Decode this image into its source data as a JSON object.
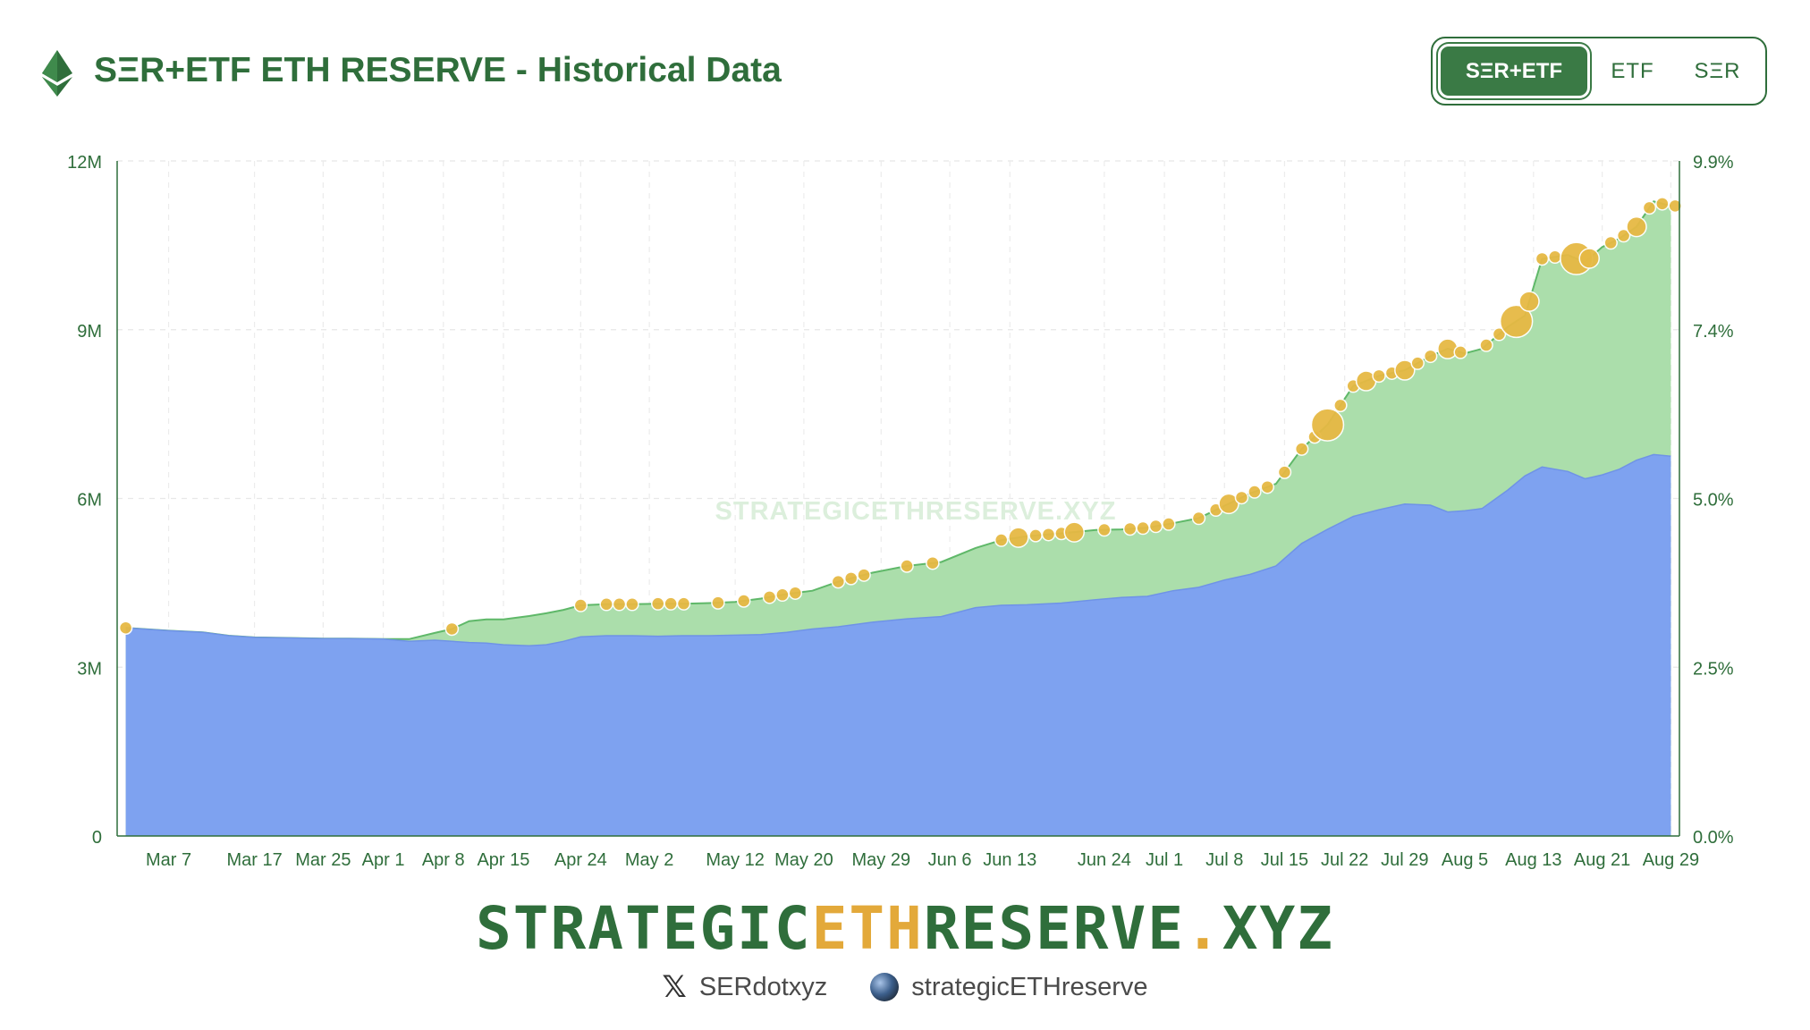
{
  "header": {
    "title": "SΞR+ETF ETH RESERVE - Historical Data",
    "toggle": [
      "SΞR+ETF",
      "ETF",
      "SΞR"
    ],
    "active_toggle": "SΞR+ETF"
  },
  "colors": {
    "brand_green": "#2f6e3b",
    "etf_area": "#7ea2f0",
    "ser_area": "#abdeab",
    "ser_line": "#5fb869",
    "bubble": "#e6b944",
    "bubble_stroke": "#ffffff",
    "accent_orange": "#e3a93a"
  },
  "watermark": "STRATEGICETHRESERVE.XYZ",
  "brand": {
    "prefix": "STRATEGIC",
    "accent": "ETH",
    "middle": "RESERVE",
    "dot": ".",
    "suffix": "XYZ"
  },
  "social": {
    "x_handle": "SERdotxyz",
    "site_handle": "strategicETHreserve",
    "x_icon": "x-logo-icon",
    "site_icon": "globe-icon"
  },
  "chart_data": {
    "type": "area",
    "stacked": true,
    "grid": true,
    "x_ticks": [
      "Mar 7",
      "Mar 17",
      "Mar 25",
      "Apr 1",
      "Apr 8",
      "Apr 15",
      "Apr 24",
      "May 2",
      "May 12",
      "May 20",
      "May 29",
      "Jun 6",
      "Jun 13",
      "Jun 24",
      "Jul 1",
      "Jul 8",
      "Jul 15",
      "Jul 22",
      "Jul 29",
      "Aug 5",
      "Aug 13",
      "Aug 21",
      "Aug 29"
    ],
    "x_tick_days": [
      6,
      16,
      24,
      31,
      38,
      45,
      54,
      62,
      72,
      80,
      89,
      97,
      104,
      115,
      122,
      129,
      136,
      143,
      150,
      157,
      165,
      173,
      181
    ],
    "y_left": {
      "ticks": [
        "0",
        "3M",
        "6M",
        "9M",
        "12M"
      ],
      "range": [
        0,
        12000000
      ]
    },
    "y_right": {
      "ticks": [
        "0.0%",
        "2.5%",
        "5.0%",
        "7.4%",
        "9.9%"
      ],
      "range": [
        0,
        9.9
      ]
    },
    "days": [
      1,
      3,
      6,
      10,
      13,
      16,
      20,
      24,
      27,
      31,
      34,
      37,
      39,
      41,
      43,
      45,
      48,
      50,
      52,
      54,
      57,
      60,
      63,
      66,
      69,
      72,
      75,
      78,
      81,
      84,
      88,
      92,
      96,
      100,
      103,
      106,
      110,
      114,
      117,
      120,
      123,
      126,
      129,
      132,
      135,
      138,
      141,
      144,
      147,
      150,
      153,
      155,
      157,
      159,
      162,
      164,
      166,
      169,
      171,
      173,
      175,
      177,
      179,
      181
    ],
    "series": [
      {
        "name": "ETF",
        "values": [
          3700000,
          3680000,
          3650000,
          3620000,
          3560000,
          3530000,
          3520000,
          3510000,
          3510000,
          3500000,
          3460000,
          3480000,
          3460000,
          3440000,
          3430000,
          3400000,
          3380000,
          3400000,
          3460000,
          3540000,
          3560000,
          3560000,
          3550000,
          3560000,
          3560000,
          3570000,
          3580000,
          3620000,
          3680000,
          3720000,
          3800000,
          3860000,
          3900000,
          4060000,
          4100000,
          4110000,
          4140000,
          4200000,
          4240000,
          4260000,
          4360000,
          4420000,
          4550000,
          4650000,
          4800000,
          5200000,
          5450000,
          5680000,
          5800000,
          5900000,
          5880000,
          5760000,
          5780000,
          5820000,
          6150000,
          6400000,
          6560000,
          6480000,
          6350000,
          6420000,
          6520000,
          6680000,
          6780000,
          6750000
        ]
      },
      {
        "name": "SER",
        "values": [
          0,
          0,
          0,
          0,
          0,
          0,
          0,
          0,
          0,
          0,
          40000,
          130000,
          220000,
          380000,
          420000,
          450000,
          530000,
          560000,
          560000,
          560000,
          560000,
          560000,
          580000,
          570000,
          580000,
          590000,
          640000,
          680000,
          680000,
          800000,
          880000,
          940000,
          970000,
          1060000,
          1160000,
          1220000,
          1240000,
          1240000,
          1210000,
          1220000,
          1200000,
          1230000,
          1320000,
          1440000,
          1460000,
          1680000,
          1860000,
          2320000,
          2380000,
          2380000,
          2650000,
          2900000,
          2800000,
          2840000,
          2900000,
          2850000,
          3700000,
          3850000,
          3850000,
          4050000,
          4100000,
          4150000,
          4500000,
          4450000
        ]
      }
    ],
    "purchases": [
      {
        "day": 1,
        "size": 1
      },
      {
        "day": 39,
        "size": 1
      },
      {
        "day": 54,
        "size": 1
      },
      {
        "day": 57,
        "size": 1
      },
      {
        "day": 58.5,
        "size": 1
      },
      {
        "day": 60,
        "size": 1
      },
      {
        "day": 63,
        "size": 1
      },
      {
        "day": 64.5,
        "size": 1
      },
      {
        "day": 66,
        "size": 1
      },
      {
        "day": 70,
        "size": 1
      },
      {
        "day": 73,
        "size": 1
      },
      {
        "day": 76,
        "size": 1
      },
      {
        "day": 77.5,
        "size": 1
      },
      {
        "day": 79,
        "size": 1
      },
      {
        "day": 84,
        "size": 1
      },
      {
        "day": 85.5,
        "size": 1
      },
      {
        "day": 87,
        "size": 1
      },
      {
        "day": 92,
        "size": 1
      },
      {
        "day": 95,
        "size": 1
      },
      {
        "day": 103,
        "size": 1
      },
      {
        "day": 105,
        "size": 2
      },
      {
        "day": 107,
        "size": 1
      },
      {
        "day": 108.5,
        "size": 1
      },
      {
        "day": 110,
        "size": 1
      },
      {
        "day": 111.5,
        "size": 2
      },
      {
        "day": 115,
        "size": 1
      },
      {
        "day": 118,
        "size": 1
      },
      {
        "day": 119.5,
        "size": 1
      },
      {
        "day": 121,
        "size": 1
      },
      {
        "day": 122.5,
        "size": 1
      },
      {
        "day": 126,
        "size": 1
      },
      {
        "day": 128,
        "size": 1
      },
      {
        "day": 129.5,
        "size": 2
      },
      {
        "day": 131,
        "size": 1
      },
      {
        "day": 132.5,
        "size": 1
      },
      {
        "day": 134,
        "size": 1
      },
      {
        "day": 136,
        "size": 1
      },
      {
        "day": 138,
        "size": 1
      },
      {
        "day": 139.5,
        "size": 1
      },
      {
        "day": 141,
        "size": 3
      },
      {
        "day": 142.5,
        "size": 1
      },
      {
        "day": 144,
        "size": 1
      },
      {
        "day": 145.5,
        "size": 2
      },
      {
        "day": 147,
        "size": 1
      },
      {
        "day": 148.5,
        "size": 1
      },
      {
        "day": 150,
        "size": 2
      },
      {
        "day": 151.5,
        "size": 1
      },
      {
        "day": 153,
        "size": 1
      },
      {
        "day": 155,
        "size": 2
      },
      {
        "day": 156.5,
        "size": 1
      },
      {
        "day": 159.5,
        "size": 1
      },
      {
        "day": 161,
        "size": 1
      },
      {
        "day": 163,
        "size": 3
      },
      {
        "day": 164.5,
        "size": 2
      },
      {
        "day": 166,
        "size": 1
      },
      {
        "day": 167.5,
        "size": 1
      },
      {
        "day": 170,
        "size": 3
      },
      {
        "day": 171.5,
        "size": 2
      },
      {
        "day": 174,
        "size": 1
      },
      {
        "day": 175.5,
        "size": 1
      },
      {
        "day": 177,
        "size": 2
      },
      {
        "day": 178.5,
        "size": 1
      },
      {
        "day": 180,
        "size": 1
      },
      {
        "day": 181.5,
        "size": 1
      }
    ]
  }
}
